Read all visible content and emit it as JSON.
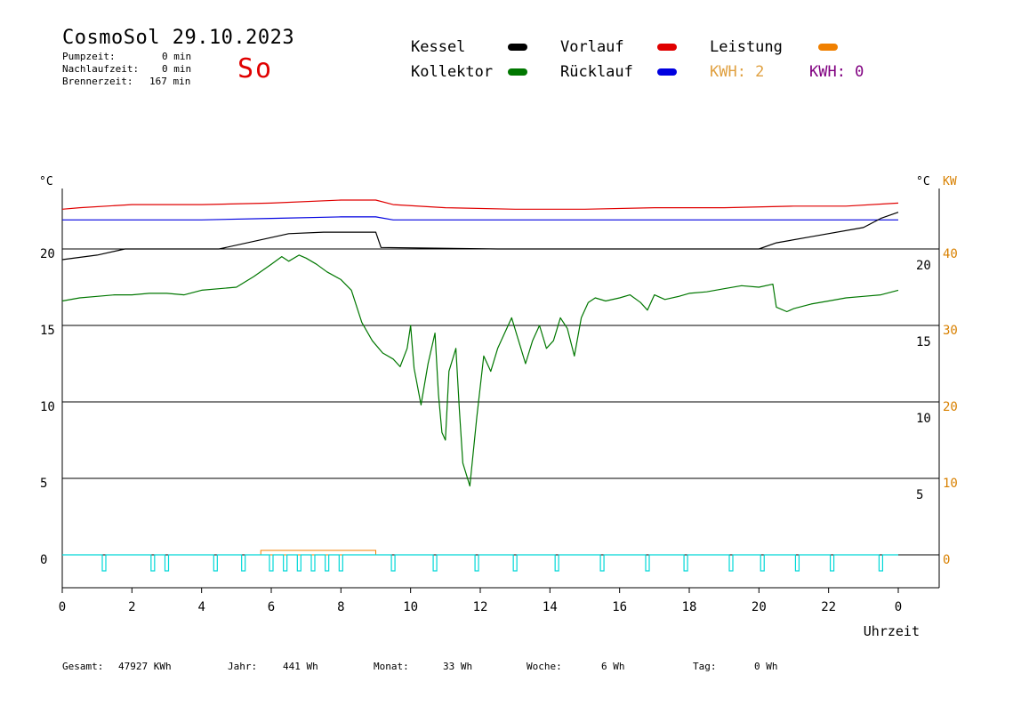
{
  "header": {
    "title": "CosmoSol 29.10.2023",
    "pumpzeit_label": "Pumpzeit:",
    "pumpzeit_value": "0 min",
    "nachlauf_label": "Nachlaufzeit:",
    "nachlauf_value": "0 min",
    "brenner_label": "Brennerzeit:",
    "brenner_value": "167 min",
    "weekday": "So"
  },
  "legend": {
    "kessel": "Kessel",
    "kollektor": "Kollektor",
    "vorlauf": "Vorlauf",
    "ruecklauf": "Rücklauf",
    "leistung": "Leistung",
    "kwh1": "KWH: 2",
    "kwh2": "KWH: 0"
  },
  "colors": {
    "kessel": "#000000",
    "kollektor": "#007700",
    "vorlauf": "#e00000",
    "ruecklauf": "#0000e0",
    "leistung": "#f08000",
    "kwh2": "#800080",
    "pump": "#00d8d8",
    "axis_right": "#d88000"
  },
  "footer": {
    "gesamt_label": "Gesamt:",
    "gesamt_value": "47927 KWh",
    "jahr_label": "Jahr:",
    "jahr_value": "441 Wh",
    "monat_label": "Monat:",
    "monat_value": "33 Wh",
    "woche_label": "Woche:",
    "woche_value": "6 Wh",
    "tag_label": "Tag:",
    "tag_value": "0 Wh"
  },
  "chart_data": {
    "type": "line",
    "xlabel": "Uhrzeit",
    "xlim": [
      0,
      24
    ],
    "x_ticks": [
      "0",
      "2",
      "4",
      "6",
      "8",
      "10",
      "12",
      "14",
      "16",
      "18",
      "20",
      "22",
      "0"
    ],
    "ylabel_left": "°C",
    "ylabel_right": "°C",
    "ylabel_right2": "KW",
    "left_ticks": [
      "20",
      "15",
      "10",
      "5",
      "0"
    ],
    "left_tick_values": [
      20,
      15,
      10,
      5,
      0
    ],
    "right_ticks": [
      "20",
      "15",
      "10",
      "5"
    ],
    "right_tick_values": [
      20,
      15,
      10,
      5
    ],
    "right2_ticks": [
      "40",
      "30",
      "20",
      "10",
      "0"
    ],
    "right2_tick_values": [
      40,
      30,
      20,
      10,
      0
    ],
    "ylim": [
      -2.2,
      24.5
    ],
    "grid": true,
    "series": [
      {
        "name": "Vorlauf",
        "color": "#e00000",
        "x": [
          0,
          0.5,
          2,
          4,
          6,
          8,
          9,
          9.5,
          11,
          13,
          15,
          17,
          19,
          21,
          22.5,
          24
        ],
        "y": [
          22.6,
          22.7,
          22.9,
          22.9,
          23.0,
          23.2,
          23.2,
          22.9,
          22.7,
          22.6,
          22.6,
          22.7,
          22.7,
          22.8,
          22.8,
          23.0
        ]
      },
      {
        "name": "Rücklauf",
        "color": "#0000e0",
        "x": [
          0,
          2,
          4,
          6,
          8,
          9,
          9.5,
          12,
          16,
          20,
          24
        ],
        "y": [
          21.9,
          21.9,
          21.9,
          22.0,
          22.1,
          22.1,
          21.9,
          21.9,
          21.9,
          21.9,
          21.9
        ]
      },
      {
        "name": "Kessel",
        "color": "#000000",
        "x": [
          0,
          1,
          1.8,
          4.5,
          5.5,
          6.5,
          7.5,
          8.4,
          9.0,
          9.15,
          12.5,
          16,
          20,
          20.5,
          21.5,
          23,
          23.5,
          24
        ],
        "y": [
          19.3,
          19.6,
          20.0,
          20.0,
          20.5,
          21.0,
          21.1,
          21.1,
          21.1,
          20.1,
          20.0,
          20.0,
          20.0,
          20.4,
          20.8,
          21.4,
          22.0,
          22.4
        ]
      },
      {
        "name": "Kollektor",
        "color": "#007700",
        "x": [
          0,
          0.5,
          1,
          1.5,
          2,
          2.5,
          3,
          3.5,
          4,
          4.5,
          5,
          5.5,
          6,
          6.3,
          6.5,
          6.8,
          7,
          7.3,
          7.6,
          8,
          8.3,
          8.6,
          8.9,
          9.2,
          9.5,
          9.7,
          9.9,
          10.0,
          10.1,
          10.3,
          10.5,
          10.7,
          10.8,
          10.9,
          11.0,
          11.1,
          11.3,
          11.4,
          11.5,
          11.7,
          11.9,
          12.1,
          12.3,
          12.5,
          12.7,
          12.9,
          13.1,
          13.3,
          13.5,
          13.7,
          13.9,
          14.1,
          14.3,
          14.5,
          14.7,
          14.9,
          15.1,
          15.3,
          15.6,
          16,
          16.3,
          16.6,
          16.8,
          17,
          17.3,
          17.7,
          18,
          18.5,
          19,
          19.5,
          20,
          20.4,
          20.5,
          20.8,
          21,
          21.5,
          22,
          22.5,
          23,
          23.5,
          24
        ],
        "y": [
          16.6,
          16.8,
          16.9,
          17.0,
          17.0,
          17.1,
          17.1,
          17.0,
          17.3,
          17.4,
          17.5,
          18.2,
          19.0,
          19.5,
          19.2,
          19.6,
          19.4,
          19.0,
          18.5,
          18.0,
          17.3,
          15.2,
          14.0,
          13.2,
          12.8,
          12.3,
          13.5,
          15.0,
          12.2,
          9.8,
          12.5,
          14.5,
          10.5,
          8.0,
          7.5,
          12.0,
          13.5,
          9.5,
          6.0,
          4.5,
          9.0,
          13.0,
          12.0,
          13.5,
          14.5,
          15.5,
          14.0,
          12.5,
          14.0,
          15.0,
          13.5,
          14.0,
          15.5,
          14.8,
          13.0,
          15.5,
          16.5,
          16.8,
          16.6,
          16.8,
          17.0,
          16.5,
          16.0,
          17.0,
          16.7,
          16.9,
          17.1,
          17.2,
          17.4,
          17.6,
          17.5,
          17.7,
          16.2,
          15.9,
          16.1,
          16.4,
          16.6,
          16.8,
          16.9,
          17.0,
          17.3
        ]
      }
    ],
    "pump_pulses_x": [
      1.2,
      2.6,
      3.0,
      4.4,
      5.2,
      6.0,
      6.4,
      6.8,
      7.2,
      7.6,
      8.0,
      9.5,
      10.7,
      11.9,
      13.0,
      14.2,
      15.5,
      16.8,
      17.9,
      19.2,
      20.1,
      21.1,
      22.1,
      23.5
    ],
    "burner_on": [
      5.7,
      9.0
    ]
  }
}
